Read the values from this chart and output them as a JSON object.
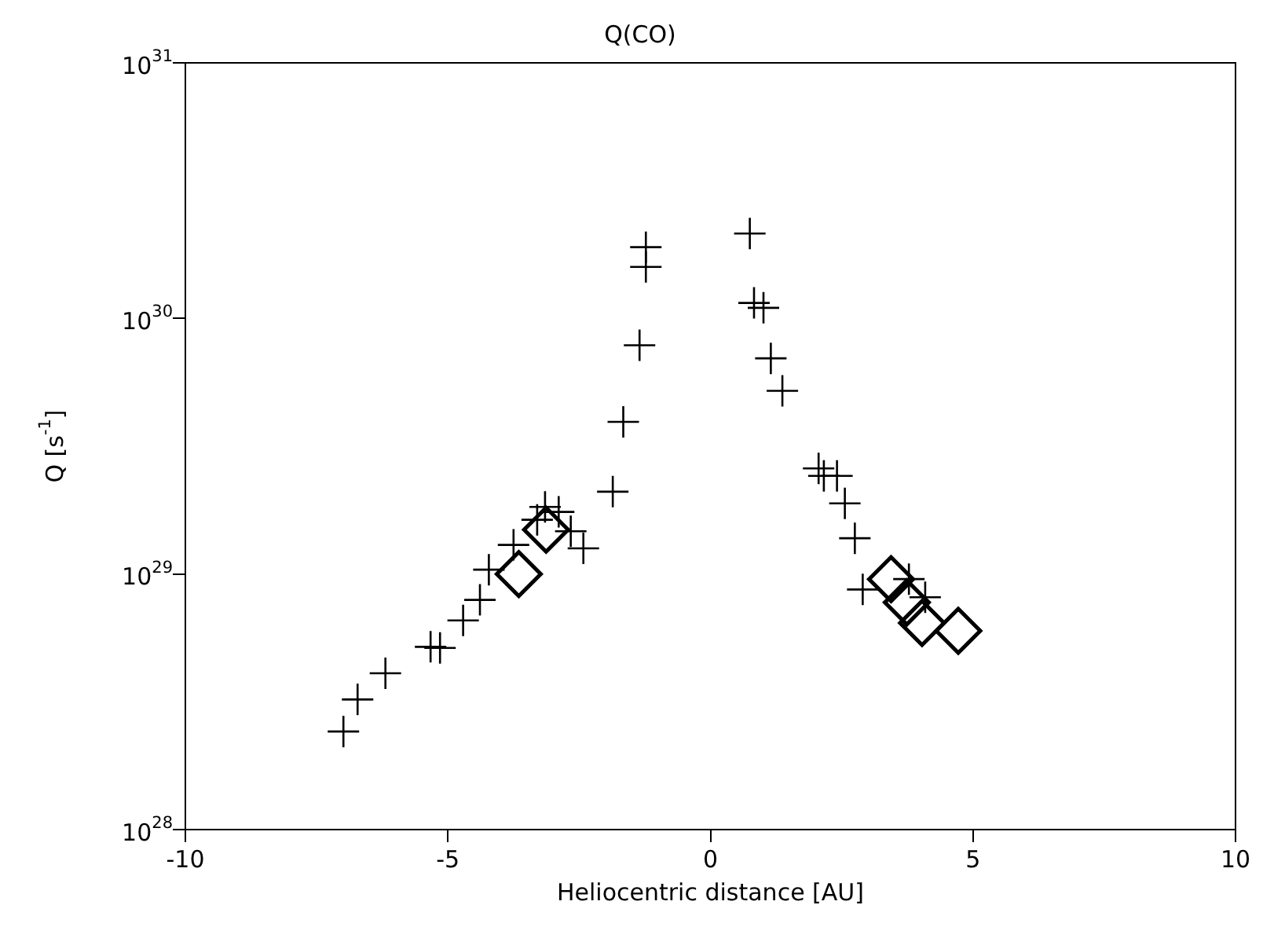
{
  "chart_data": {
    "type": "scatter",
    "title": "Q(CO)",
    "xlabel": "Heliocentric distance [AU]",
    "ylabel": "Q [s$^{-1}$]",
    "log": "y",
    "grid": false,
    "legend": false,
    "xlim": [
      -10,
      10
    ],
    "xticks": [
      -10,
      -5,
      0,
      5,
      10
    ],
    "ylim": [
      1e+28,
      1e+31
    ],
    "yticks": [
      {
        "value": 1e+28,
        "label": "10$^{28}$"
      },
      {
        "value": 1e+29,
        "label": "10$^{29}$"
      },
      {
        "value": 1e+30,
        "label": "10$^{30}$"
      },
      {
        "value": 1e+31,
        "label": "10$^{31}$"
      }
    ],
    "series": [
      {
        "color": "#000000",
        "marker": "cross",
        "x": [
          -6.99,
          -6.72,
          -6.19,
          -5.15,
          -5.33,
          -4.71,
          -4.39,
          -4.22,
          -3.75,
          -3.3,
          -3.15,
          -2.89,
          -2.66,
          -2.42,
          -1.86,
          -1.66,
          -1.35,
          -1.23,
          -1.23,
          0.75,
          0.83,
          1.01,
          1.15,
          1.37,
          2.06,
          2.16,
          2.41,
          2.56,
          2.75,
          2.9,
          3.78,
          4.09
        ],
        "values": [
          2.42e+28,
          3.23e+28,
          4.09e+28,
          5.14e+28,
          5.19e+28,
          6.58e+28,
          7.92e+28,
          1.04e+29,
          1.3e+29,
          1.63e+29,
          1.83e+29,
          1.75e+29,
          1.47e+29,
          1.26e+29,
          2.1e+29,
          3.94e+29,
          7.85e+29,
          1.59e+30,
          1.9e+30,
          2.15e+30,
          1.15e+30,
          1.1e+30,
          6.98e+29,
          5.21e+29,
          2.59e+29,
          2.42e+29,
          2.42e+29,
          1.89e+29,
          1.38e+29,
          8.7e+28,
          9.55e+28,
          8.11e+28
        ]
      },
      {
        "color": "#000000",
        "marker": "diamond",
        "x": [
          -3.65,
          -3.13,
          3.44,
          3.74,
          4.03,
          4.72
        ],
        "values": [
          1e+29,
          1.49e+29,
          9.55e+28,
          7.74e+28,
          6.43e+28,
          5.99e+28
        ]
      }
    ]
  }
}
